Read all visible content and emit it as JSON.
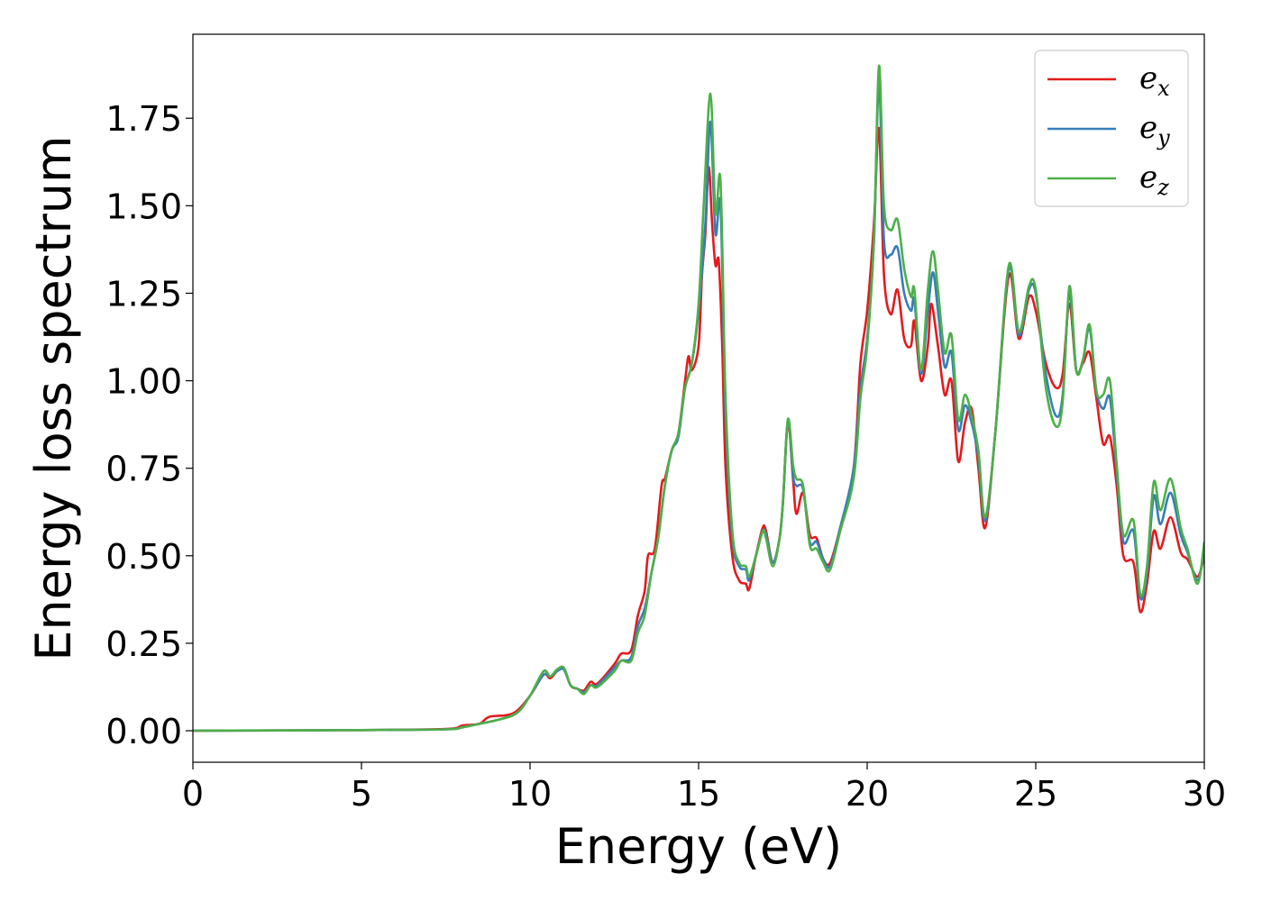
{
  "chart_data": {
    "type": "line",
    "xlabel": "Energy (eV)",
    "ylabel": "Energy loss spectrum",
    "xlim": [
      0,
      30
    ],
    "ylim": [
      -0.09,
      1.99
    ],
    "xticks": [
      0,
      5,
      10,
      15,
      20,
      25,
      30
    ],
    "yticks": [
      0.0,
      0.25,
      0.5,
      0.75,
      1.0,
      1.25,
      1.5,
      1.75
    ],
    "xtick_labels": [
      "0",
      "5",
      "10",
      "15",
      "20",
      "25",
      "30"
    ],
    "ytick_labels": [
      "0.00",
      "0.25",
      "0.50",
      "0.75",
      "1.00",
      "1.25",
      "1.50",
      "1.75"
    ],
    "grid": false,
    "legend_position": "top-right",
    "series": [
      {
        "name_base": "e",
        "name_sub": "x",
        "color": "#e41a1c",
        "points": [
          [
            0,
            0
          ],
          [
            5,
            0.002
          ],
          [
            7.5,
            0.005
          ],
          [
            8,
            0.015
          ],
          [
            8.5,
            0.02
          ],
          [
            8.8,
            0.04
          ],
          [
            9.5,
            0.05
          ],
          [
            10,
            0.1
          ],
          [
            10.4,
            0.16
          ],
          [
            10.6,
            0.15
          ],
          [
            10.8,
            0.17
          ],
          [
            11,
            0.18
          ],
          [
            11.2,
            0.13
          ],
          [
            11.4,
            0.12
          ],
          [
            11.6,
            0.115
          ],
          [
            11.8,
            0.14
          ],
          [
            12,
            0.135
          ],
          [
            12.5,
            0.19
          ],
          [
            12.7,
            0.22
          ],
          [
            13,
            0.23
          ],
          [
            13.2,
            0.33
          ],
          [
            13.4,
            0.4
          ],
          [
            13.5,
            0.5
          ],
          [
            13.7,
            0.52
          ],
          [
            13.9,
            0.7
          ],
          [
            14,
            0.72
          ],
          [
            14.2,
            0.8
          ],
          [
            14.4,
            0.85
          ],
          [
            14.6,
            1.0
          ],
          [
            14.7,
            1.07
          ],
          [
            14.8,
            1.03
          ],
          [
            15,
            1.1
          ],
          [
            15.1,
            1.3
          ],
          [
            15.2,
            1.42
          ],
          [
            15.3,
            1.61
          ],
          [
            15.4,
            1.45
          ],
          [
            15.5,
            1.33
          ],
          [
            15.6,
            1.34
          ],
          [
            15.7,
            1.1
          ],
          [
            15.8,
            0.75
          ],
          [
            16,
            0.5
          ],
          [
            16.2,
            0.43
          ],
          [
            16.4,
            0.42
          ],
          [
            16.5,
            0.405
          ],
          [
            16.7,
            0.5
          ],
          [
            16.9,
            0.58
          ],
          [
            17,
            0.57
          ],
          [
            17.2,
            0.48
          ],
          [
            17.4,
            0.55
          ],
          [
            17.5,
            0.65
          ],
          [
            17.65,
            0.88
          ],
          [
            17.8,
            0.72
          ],
          [
            17.9,
            0.62
          ],
          [
            18.1,
            0.68
          ],
          [
            18.3,
            0.56
          ],
          [
            18.5,
            0.55
          ],
          [
            18.7,
            0.49
          ],
          [
            18.9,
            0.48
          ],
          [
            19.2,
            0.58
          ],
          [
            19.6,
            0.75
          ],
          [
            19.8,
            1.05
          ],
          [
            20,
            1.2
          ],
          [
            20.2,
            1.45
          ],
          [
            20.35,
            1.72
          ],
          [
            20.5,
            1.3
          ],
          [
            20.7,
            1.19
          ],
          [
            20.9,
            1.26
          ],
          [
            21.1,
            1.12
          ],
          [
            21.3,
            1.1
          ],
          [
            21.4,
            1.17
          ],
          [
            21.6,
            1.0
          ],
          [
            21.8,
            1.1
          ],
          [
            21.9,
            1.22
          ],
          [
            22.1,
            1.1
          ],
          [
            22.3,
            0.96
          ],
          [
            22.5,
            1.0
          ],
          [
            22.7,
            0.77
          ],
          [
            22.9,
            0.88
          ],
          [
            23.1,
            0.92
          ],
          [
            23.3,
            0.75
          ],
          [
            23.5,
            0.58
          ],
          [
            23.8,
            0.85
          ],
          [
            24.2,
            1.3
          ],
          [
            24.5,
            1.12
          ],
          [
            24.8,
            1.24
          ],
          [
            25,
            1.2
          ],
          [
            25.3,
            1.05
          ],
          [
            25.6,
            0.98
          ],
          [
            25.8,
            1.02
          ],
          [
            26,
            1.22
          ],
          [
            26.2,
            1.03
          ],
          [
            26.4,
            1.05
          ],
          [
            26.6,
            1.08
          ],
          [
            26.8,
            0.95
          ],
          [
            27,
            0.82
          ],
          [
            27.2,
            0.84
          ],
          [
            27.4,
            0.7
          ],
          [
            27.6,
            0.5
          ],
          [
            27.9,
            0.48
          ],
          [
            28.1,
            0.34
          ],
          [
            28.3,
            0.42
          ],
          [
            28.5,
            0.57
          ],
          [
            28.7,
            0.52
          ],
          [
            29,
            0.61
          ],
          [
            29.3,
            0.51
          ],
          [
            29.5,
            0.49
          ],
          [
            29.8,
            0.44
          ],
          [
            30,
            0.5
          ]
        ]
      },
      {
        "name_base": "e",
        "name_sub": "y",
        "color": "#377eb8",
        "points": [
          [
            0,
            0
          ],
          [
            5,
            0.002
          ],
          [
            7.5,
            0.004
          ],
          [
            8,
            0.01
          ],
          [
            8.5,
            0.02
          ],
          [
            9,
            0.03
          ],
          [
            9.6,
            0.05
          ],
          [
            10,
            0.1
          ],
          [
            10.4,
            0.16
          ],
          [
            10.6,
            0.155
          ],
          [
            10.8,
            0.17
          ],
          [
            11,
            0.175
          ],
          [
            11.2,
            0.13
          ],
          [
            11.4,
            0.12
          ],
          [
            11.6,
            0.11
          ],
          [
            11.8,
            0.13
          ],
          [
            12,
            0.13
          ],
          [
            12.5,
            0.18
          ],
          [
            12.7,
            0.2
          ],
          [
            13,
            0.21
          ],
          [
            13.2,
            0.3
          ],
          [
            13.4,
            0.35
          ],
          [
            13.6,
            0.45
          ],
          [
            13.8,
            0.55
          ],
          [
            14,
            0.7
          ],
          [
            14.2,
            0.8
          ],
          [
            14.4,
            0.84
          ],
          [
            14.6,
            0.98
          ],
          [
            14.8,
            1.05
          ],
          [
            15,
            1.2
          ],
          [
            15.2,
            1.45
          ],
          [
            15.35,
            1.74
          ],
          [
            15.5,
            1.42
          ],
          [
            15.65,
            1.5
          ],
          [
            15.8,
            0.9
          ],
          [
            16,
            0.55
          ],
          [
            16.2,
            0.47
          ],
          [
            16.4,
            0.46
          ],
          [
            16.5,
            0.43
          ],
          [
            16.7,
            0.5
          ],
          [
            16.9,
            0.57
          ],
          [
            17,
            0.56
          ],
          [
            17.2,
            0.48
          ],
          [
            17.4,
            0.55
          ],
          [
            17.5,
            0.65
          ],
          [
            17.65,
            0.89
          ],
          [
            17.8,
            0.73
          ],
          [
            17.9,
            0.7
          ],
          [
            18.1,
            0.69
          ],
          [
            18.3,
            0.54
          ],
          [
            18.5,
            0.54
          ],
          [
            18.7,
            0.49
          ],
          [
            18.9,
            0.47
          ],
          [
            19.2,
            0.58
          ],
          [
            19.6,
            0.75
          ],
          [
            19.8,
            0.98
          ],
          [
            20,
            1.12
          ],
          [
            20.2,
            1.4
          ],
          [
            20.35,
            1.85
          ],
          [
            20.5,
            1.4
          ],
          [
            20.7,
            1.36
          ],
          [
            20.9,
            1.38
          ],
          [
            21.1,
            1.25
          ],
          [
            21.3,
            1.2
          ],
          [
            21.4,
            1.23
          ],
          [
            21.6,
            1.02
          ],
          [
            21.8,
            1.2
          ],
          [
            21.95,
            1.31
          ],
          [
            22.1,
            1.2
          ],
          [
            22.3,
            1.04
          ],
          [
            22.5,
            1.08
          ],
          [
            22.7,
            0.86
          ],
          [
            22.9,
            0.93
          ],
          [
            23.1,
            0.88
          ],
          [
            23.3,
            0.78
          ],
          [
            23.5,
            0.6
          ],
          [
            23.8,
            0.85
          ],
          [
            24.2,
            1.32
          ],
          [
            24.5,
            1.13
          ],
          [
            24.8,
            1.26
          ],
          [
            25,
            1.25
          ],
          [
            25.3,
            1.02
          ],
          [
            25.6,
            0.9
          ],
          [
            25.8,
            0.96
          ],
          [
            26,
            1.25
          ],
          [
            26.2,
            1.03
          ],
          [
            26.4,
            1.06
          ],
          [
            26.6,
            1.15
          ],
          [
            26.8,
            0.97
          ],
          [
            27,
            0.92
          ],
          [
            27.2,
            0.95
          ],
          [
            27.4,
            0.74
          ],
          [
            27.6,
            0.54
          ],
          [
            27.9,
            0.57
          ],
          [
            28.1,
            0.38
          ],
          [
            28.3,
            0.45
          ],
          [
            28.5,
            0.67
          ],
          [
            28.7,
            0.59
          ],
          [
            29,
            0.68
          ],
          [
            29.3,
            0.56
          ],
          [
            29.5,
            0.51
          ],
          [
            29.8,
            0.43
          ],
          [
            30,
            0.52
          ]
        ]
      },
      {
        "name_base": "e",
        "name_sub": "z",
        "color": "#4daf4a",
        "points": [
          [
            0,
            0
          ],
          [
            5,
            0.002
          ],
          [
            7.5,
            0.004
          ],
          [
            8,
            0.01
          ],
          [
            8.5,
            0.02
          ],
          [
            9,
            0.03
          ],
          [
            9.6,
            0.05
          ],
          [
            10,
            0.1
          ],
          [
            10.4,
            0.17
          ],
          [
            10.6,
            0.155
          ],
          [
            10.8,
            0.175
          ],
          [
            11,
            0.18
          ],
          [
            11.2,
            0.13
          ],
          [
            11.4,
            0.12
          ],
          [
            11.6,
            0.105
          ],
          [
            11.8,
            0.13
          ],
          [
            12,
            0.125
          ],
          [
            12.5,
            0.17
          ],
          [
            12.7,
            0.2
          ],
          [
            13,
            0.2
          ],
          [
            13.2,
            0.28
          ],
          [
            13.4,
            0.33
          ],
          [
            13.6,
            0.45
          ],
          [
            13.8,
            0.55
          ],
          [
            14,
            0.7
          ],
          [
            14.2,
            0.8
          ],
          [
            14.4,
            0.85
          ],
          [
            14.6,
            0.98
          ],
          [
            14.8,
            1.05
          ],
          [
            15,
            1.22
          ],
          [
            15.15,
            1.5
          ],
          [
            15.35,
            1.82
          ],
          [
            15.5,
            1.48
          ],
          [
            15.65,
            1.57
          ],
          [
            15.8,
            0.95
          ],
          [
            16,
            0.57
          ],
          [
            16.2,
            0.48
          ],
          [
            16.4,
            0.47
          ],
          [
            16.5,
            0.44
          ],
          [
            16.7,
            0.5
          ],
          [
            16.9,
            0.57
          ],
          [
            17,
            0.55
          ],
          [
            17.2,
            0.47
          ],
          [
            17.4,
            0.55
          ],
          [
            17.5,
            0.65
          ],
          [
            17.65,
            0.89
          ],
          [
            17.8,
            0.76
          ],
          [
            17.9,
            0.72
          ],
          [
            18.1,
            0.7
          ],
          [
            18.3,
            0.53
          ],
          [
            18.5,
            0.52
          ],
          [
            18.7,
            0.48
          ],
          [
            18.9,
            0.46
          ],
          [
            19.2,
            0.57
          ],
          [
            19.6,
            0.72
          ],
          [
            19.8,
            0.95
          ],
          [
            20,
            1.1
          ],
          [
            20.2,
            1.4
          ],
          [
            20.35,
            1.9
          ],
          [
            20.5,
            1.5
          ],
          [
            20.7,
            1.43
          ],
          [
            20.9,
            1.46
          ],
          [
            21.1,
            1.32
          ],
          [
            21.3,
            1.24
          ],
          [
            21.4,
            1.26
          ],
          [
            21.6,
            1.03
          ],
          [
            21.8,
            1.26
          ],
          [
            21.95,
            1.37
          ],
          [
            22.1,
            1.26
          ],
          [
            22.3,
            1.08
          ],
          [
            22.5,
            1.13
          ],
          [
            22.7,
            0.89
          ],
          [
            22.9,
            0.96
          ],
          [
            23.1,
            0.9
          ],
          [
            23.3,
            0.8
          ],
          [
            23.5,
            0.61
          ],
          [
            23.8,
            0.85
          ],
          [
            24.2,
            1.33
          ],
          [
            24.5,
            1.14
          ],
          [
            24.8,
            1.27
          ],
          [
            25,
            1.26
          ],
          [
            25.3,
            0.98
          ],
          [
            25.6,
            0.87
          ],
          [
            25.8,
            0.94
          ],
          [
            26,
            1.27
          ],
          [
            26.2,
            1.03
          ],
          [
            26.4,
            1.06
          ],
          [
            26.6,
            1.16
          ],
          [
            26.8,
            0.97
          ],
          [
            27,
            0.96
          ],
          [
            27.2,
            1.0
          ],
          [
            27.4,
            0.76
          ],
          [
            27.6,
            0.56
          ],
          [
            27.9,
            0.6
          ],
          [
            28.1,
            0.39
          ],
          [
            28.3,
            0.47
          ],
          [
            28.5,
            0.71
          ],
          [
            28.7,
            0.63
          ],
          [
            29,
            0.72
          ],
          [
            29.3,
            0.58
          ],
          [
            29.5,
            0.52
          ],
          [
            29.8,
            0.42
          ],
          [
            30,
            0.54
          ]
        ]
      }
    ]
  }
}
